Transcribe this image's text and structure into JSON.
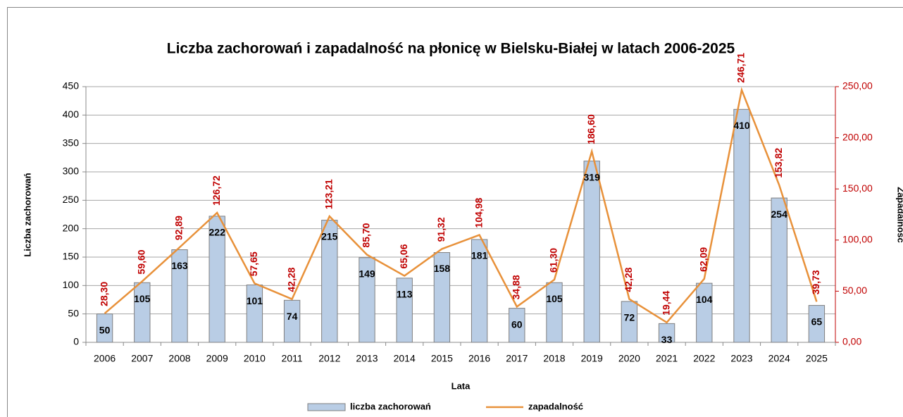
{
  "chart_data": {
    "type": "bar",
    "title": "Liczba zachorowań i zapadalność na płonicę w Bielsku-Białej w latach 2006-2025",
    "xlabel": "Lata",
    "ylabel": "Liczba zachorowań",
    "y2label": "Zapadalność",
    "categories": [
      "2006",
      "2007",
      "2008",
      "2009",
      "2010",
      "2011",
      "2012",
      "2013",
      "2014",
      "2015",
      "2016",
      "2017",
      "2018",
      "2019",
      "2020",
      "2021",
      "2022",
      "2023",
      "2024",
      "2025"
    ],
    "series": [
      {
        "name": "liczba zachorowań",
        "type": "bar",
        "color": "#b9cde5",
        "values": [
          50,
          105,
          163,
          222,
          101,
          74,
          215,
          149,
          113,
          158,
          181,
          60,
          105,
          319,
          72,
          33,
          104,
          410,
          254,
          65
        ]
      },
      {
        "name": "zapadalność",
        "type": "line",
        "axis": "y2",
        "color": "#e8913a",
        "values": [
          28.3,
          59.6,
          92.89,
          126.72,
          57.65,
          42.28,
          123.21,
          85.7,
          65.06,
          91.32,
          104.98,
          34.88,
          61.3,
          186.6,
          42.28,
          19.44,
          62.09,
          246.71,
          153.82,
          39.73
        ],
        "value_labels": [
          "28,30",
          "59,60",
          "92,89",
          "126,72",
          "57,65",
          "42,28",
          "123,21",
          "85,70",
          "65,06",
          "91,32",
          "104,98",
          "34,88",
          "61,30",
          "186,60",
          "42,28",
          "19,44",
          "62,09",
          "246,71",
          "153,82",
          "39,73"
        ]
      }
    ],
    "ylim": [
      0,
      450
    ],
    "yticks": [
      0,
      50,
      100,
      150,
      200,
      250,
      300,
      350,
      400,
      450
    ],
    "y2lim": [
      0,
      250
    ],
    "y2ticks": [
      {
        "value": 0,
        "label": "0,00"
      },
      {
        "value": 50,
        "label": "50,00"
      },
      {
        "value": 100,
        "label": "100,00"
      },
      {
        "value": 150,
        "label": "150,00"
      },
      {
        "value": 200,
        "label": "200,00"
      },
      {
        "value": 250,
        "label": "250,00"
      }
    ],
    "grid": true,
    "legend": "bottom"
  }
}
